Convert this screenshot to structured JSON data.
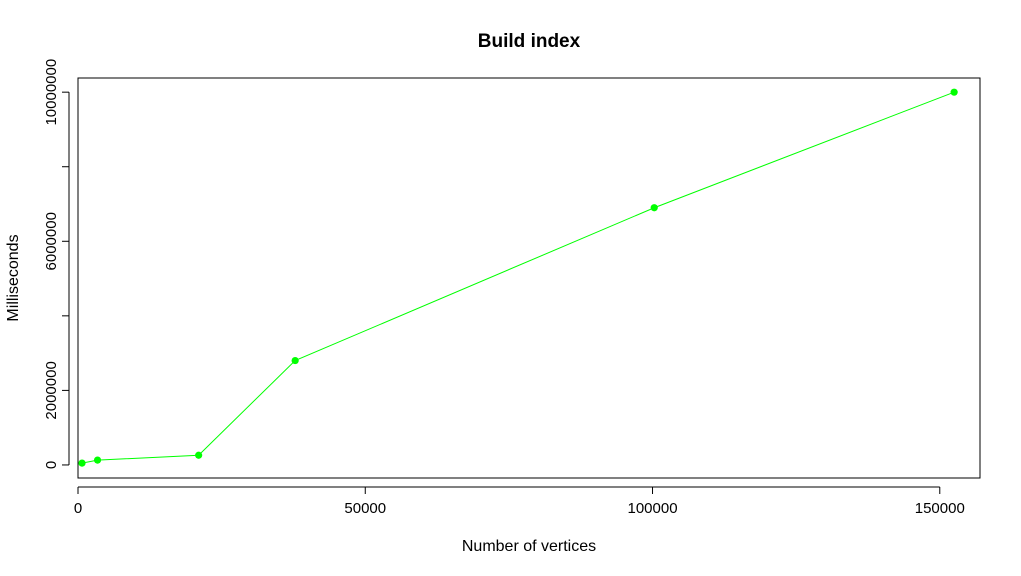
{
  "chart_data": {
    "type": "line",
    "title": "Build index",
    "xlabel": "Number of vertices",
    "ylabel": "Milliseconds",
    "xlim": [
      0,
      157000
    ],
    "ylim": [
      -350000,
      10380000
    ],
    "x_ticks": [
      0,
      50000,
      100000,
      150000
    ],
    "x_tick_labels": [
      "0",
      "50000",
      "100000",
      "150000"
    ],
    "y_ticks": [
      0,
      2000000,
      4000000,
      6000000,
      8000000,
      10000000
    ],
    "y_tick_labels": [
      "0",
      "2000000",
      "",
      "6000000",
      "",
      "10000000"
    ],
    "series": [
      {
        "color": "#00ff00",
        "x": [
          700,
          3400,
          21000,
          37800,
          100300,
          152500
        ],
        "y": [
          50000,
          130000,
          260000,
          2800000,
          6900000,
          10000000
        ]
      }
    ],
    "grid": false,
    "legend": "none"
  }
}
